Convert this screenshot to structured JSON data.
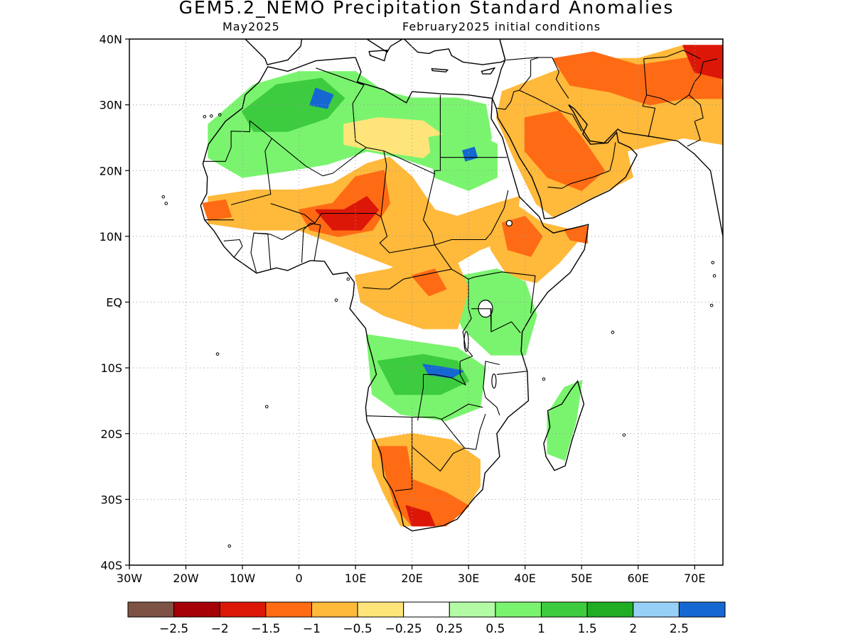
{
  "title": "GEM5.2_NEMO Precipitation Standard Anomalies",
  "valid_month": "May2025",
  "init_conditions": "February2025 initial conditions",
  "map": {
    "lon_range": [
      -30,
      75
    ],
    "lat_range": [
      -40,
      40
    ],
    "grid_lines": "dotted",
    "x_ticks": [
      {
        "lon": -30,
        "label": "30W"
      },
      {
        "lon": -20,
        "label": "20W"
      },
      {
        "lon": -10,
        "label": "10W"
      },
      {
        "lon": 0,
        "label": "0"
      },
      {
        "lon": 10,
        "label": "10E"
      },
      {
        "lon": 20,
        "label": "20E"
      },
      {
        "lon": 30,
        "label": "30E"
      },
      {
        "lon": 40,
        "label": "40E"
      },
      {
        "lon": 50,
        "label": "50E"
      },
      {
        "lon": 60,
        "label": "60E"
      },
      {
        "lon": 70,
        "label": "70E"
      }
    ],
    "y_ticks": [
      {
        "lat": 40,
        "label": "40N"
      },
      {
        "lat": 30,
        "label": "30N"
      },
      {
        "lat": 20,
        "label": "20N"
      },
      {
        "lat": 10,
        "label": "10N"
      },
      {
        "lat": 0,
        "label": "EQ"
      },
      {
        "lat": -10,
        "label": "10S"
      },
      {
        "lat": -20,
        "label": "20S"
      },
      {
        "lat": -30,
        "label": "30S"
      },
      {
        "lat": -40,
        "label": "40S"
      }
    ],
    "anomaly_regions": [
      {
        "name": "north-africa-green",
        "level": 1,
        "color": "#7af46e",
        "pts": [
          [
            -16,
            27
          ],
          [
            -8,
            33
          ],
          [
            0,
            35
          ],
          [
            10,
            35
          ],
          [
            15,
            32
          ],
          [
            20,
            31
          ],
          [
            28,
            31
          ],
          [
            33,
            30
          ],
          [
            34,
            25
          ],
          [
            32,
            20
          ],
          [
            25,
            20
          ],
          [
            18,
            22
          ],
          [
            12,
            23
          ],
          [
            5,
            21
          ],
          [
            -2,
            20
          ],
          [
            -10,
            19
          ],
          [
            -16,
            22
          ]
        ]
      },
      {
        "name": "atlas-medium-green",
        "level": 1.5,
        "color": "#3dcc3f",
        "pts": [
          [
            -10,
            29
          ],
          [
            -4,
            33
          ],
          [
            4,
            34
          ],
          [
            8,
            31
          ],
          [
            5,
            28
          ],
          [
            -2,
            26
          ],
          [
            -8,
            26
          ]
        ]
      },
      {
        "name": "algeria-blue",
        "level": 2.5,
        "color": "#1568d2",
        "pts": [
          [
            3,
            32.5
          ],
          [
            6,
            31.5
          ],
          [
            5,
            29.5
          ],
          [
            2,
            30
          ]
        ]
      },
      {
        "name": "sahara-yellow",
        "level": -0.5,
        "color": "#ffe579",
        "pts": [
          [
            8,
            27
          ],
          [
            14,
            28
          ],
          [
            22,
            27.5
          ],
          [
            26,
            25
          ],
          [
            22,
            22
          ],
          [
            14,
            23
          ],
          [
            8,
            24
          ]
        ]
      },
      {
        "name": "sahel-orange",
        "level": -1,
        "color": "#ffb93b",
        "pts": [
          [
            -16,
            16
          ],
          [
            -8,
            17
          ],
          [
            0,
            17
          ],
          [
            6,
            18
          ],
          [
            12,
            21
          ],
          [
            16,
            22
          ],
          [
            20,
            19
          ],
          [
            24,
            14
          ],
          [
            28,
            13
          ],
          [
            35,
            15
          ],
          [
            39,
            16
          ],
          [
            38,
            10
          ],
          [
            32,
            8
          ],
          [
            26,
            5
          ],
          [
            18,
            5
          ],
          [
            12,
            7
          ],
          [
            6,
            9
          ],
          [
            0,
            11
          ],
          [
            -8,
            11
          ],
          [
            -16,
            12
          ]
        ]
      },
      {
        "name": "niger-chad-red-orange",
        "level": -1.5,
        "color": "#ff6b14",
        "pts": [
          [
            0,
            14
          ],
          [
            6,
            15
          ],
          [
            10,
            19
          ],
          [
            15,
            20
          ],
          [
            16,
            15
          ],
          [
            13,
            11
          ],
          [
            7,
            10
          ],
          [
            2,
            11
          ]
        ]
      },
      {
        "name": "nigeria-dark-red",
        "level": -2,
        "color": "#dc1708",
        "pts": [
          [
            3,
            14
          ],
          [
            8,
            14
          ],
          [
            12,
            16
          ],
          [
            14,
            14
          ],
          [
            11,
            11
          ],
          [
            6,
            11
          ]
        ]
      },
      {
        "name": "senegal-orange",
        "level": -1.5,
        "color": "#ff6b14",
        "pts": [
          [
            -17,
            15
          ],
          [
            -13,
            15.5
          ],
          [
            -12,
            13
          ],
          [
            -16,
            12.5
          ]
        ]
      },
      {
        "name": "sudan-green",
        "level": 1,
        "color": "#7af46e",
        "pts": [
          [
            23,
            25
          ],
          [
            30,
            26
          ],
          [
            35,
            24
          ],
          [
            35,
            19
          ],
          [
            30,
            17
          ],
          [
            24,
            19
          ]
        ]
      },
      {
        "name": "sudan-blue",
        "level": 2.5,
        "color": "#1568d2",
        "pts": [
          [
            29,
            23
          ],
          [
            31,
            23.5
          ],
          [
            31.5,
            22
          ],
          [
            29.5,
            21.5
          ]
        ]
      },
      {
        "name": "ethiopia-orange",
        "level": -1,
        "color": "#ffb93b",
        "pts": [
          [
            33,
            14
          ],
          [
            38,
            15
          ],
          [
            43,
            12
          ],
          [
            48,
            11
          ],
          [
            50,
            10
          ],
          [
            46,
            6
          ],
          [
            42,
            3
          ],
          [
            37,
            4
          ],
          [
            34,
            8
          ]
        ]
      },
      {
        "name": "ethiopia-red-orange",
        "level": -1.5,
        "color": "#ff6b14",
        "pts": [
          [
            36,
            12
          ],
          [
            40,
            13
          ],
          [
            43,
            10
          ],
          [
            41,
            7
          ],
          [
            37,
            8
          ]
        ]
      },
      {
        "name": "somalia-red",
        "level": -1.5,
        "color": "#ff6b14",
        "pts": [
          [
            47,
            11
          ],
          [
            51,
            11.5
          ],
          [
            51,
            9
          ],
          [
            48,
            9.5
          ]
        ]
      },
      {
        "name": "east-africa-green",
        "level": 1,
        "color": "#7af46e",
        "pts": [
          [
            29,
            4
          ],
          [
            35,
            5
          ],
          [
            40,
            3
          ],
          [
            42,
            -2
          ],
          [
            40,
            -8
          ],
          [
            34,
            -8
          ],
          [
            29,
            -4
          ],
          [
            27,
            0
          ]
        ]
      },
      {
        "name": "congo-orange",
        "level": -1,
        "color": "#ffb93b",
        "pts": [
          [
            10,
            4
          ],
          [
            16,
            5
          ],
          [
            22,
            7
          ],
          [
            28,
            6
          ],
          [
            30,
            2
          ],
          [
            28,
            -4
          ],
          [
            22,
            -4
          ],
          [
            15,
            -2
          ],
          [
            11,
            0
          ]
        ]
      },
      {
        "name": "congo-red-orange",
        "level": -1.5,
        "color": "#ff6b14",
        "pts": [
          [
            20,
            4
          ],
          [
            24,
            5
          ],
          [
            26,
            2
          ],
          [
            23,
            1
          ]
        ]
      },
      {
        "name": "southern-congo-green",
        "level": 1,
        "color": "#7af46e",
        "pts": [
          [
            12,
            -5
          ],
          [
            20,
            -6
          ],
          [
            28,
            -7
          ],
          [
            33,
            -10
          ],
          [
            32,
            -16
          ],
          [
            26,
            -18
          ],
          [
            18,
            -17
          ],
          [
            13,
            -14
          ]
        ]
      },
      {
        "name": "zambia-medium-green",
        "level": 1.5,
        "color": "#3dcc3f",
        "pts": [
          [
            14,
            -9
          ],
          [
            22,
            -8
          ],
          [
            28,
            -9
          ],
          [
            30,
            -12
          ],
          [
            25,
            -14
          ],
          [
            17,
            -14
          ]
        ]
      },
      {
        "name": "zambia-blue",
        "level": 2.5,
        "color": "#1568d2",
        "pts": [
          [
            22,
            -9.5
          ],
          [
            26,
            -10
          ],
          [
            29,
            -10.5
          ],
          [
            27,
            -11.5
          ],
          [
            23,
            -11
          ]
        ]
      },
      {
        "name": "southern-africa-orange",
        "level": -1,
        "color": "#ffb93b",
        "pts": [
          [
            13,
            -21
          ],
          [
            20,
            -20
          ],
          [
            27,
            -21
          ],
          [
            32,
            -24
          ],
          [
            32,
            -28
          ],
          [
            29,
            -32
          ],
          [
            23,
            -34
          ],
          [
            18,
            -34
          ],
          [
            15,
            -29
          ],
          [
            13,
            -25
          ]
        ]
      },
      {
        "name": "southern-africa-red-orange",
        "level": -1.5,
        "color": "#ff6b14",
        "pts": [
          [
            14,
            -22
          ],
          [
            19,
            -22
          ],
          [
            20,
            -27
          ],
          [
            26,
            -29
          ],
          [
            30,
            -31
          ],
          [
            26,
            -34
          ],
          [
            20,
            -34
          ],
          [
            17,
            -31
          ]
        ]
      },
      {
        "name": "south-africa-dark-red",
        "level": -2,
        "color": "#dc1708",
        "pts": [
          [
            19,
            -31
          ],
          [
            23,
            -32
          ],
          [
            24,
            -34
          ],
          [
            20,
            -34
          ]
        ]
      },
      {
        "name": "madagascar-green",
        "level": 1,
        "color": "#7af46e",
        "pts": [
          [
            47,
            -13
          ],
          [
            50,
            -12
          ],
          [
            49,
            -18
          ],
          [
            47,
            -24
          ],
          [
            44,
            -23
          ],
          [
            44,
            -17
          ]
        ]
      },
      {
        "name": "arabia-orange",
        "level": -1,
        "color": "#ffb93b",
        "pts": [
          [
            36,
            32
          ],
          [
            45,
            35
          ],
          [
            52,
            37
          ],
          [
            60,
            37
          ],
          [
            68,
            39
          ],
          [
            75,
            39
          ],
          [
            75,
            24
          ],
          [
            68,
            25
          ],
          [
            58,
            23
          ],
          [
            59,
            19
          ],
          [
            52,
            16
          ],
          [
            45,
            13
          ],
          [
            42,
            15
          ],
          [
            38,
            22
          ],
          [
            35,
            28
          ]
        ]
      },
      {
        "name": "arabia-red-orange",
        "level": -1.5,
        "color": "#ff6b14",
        "pts": [
          [
            40,
            28
          ],
          [
            46,
            29
          ],
          [
            50,
            25
          ],
          [
            54,
            20
          ],
          [
            50,
            17
          ],
          [
            44,
            19
          ],
          [
            40,
            23
          ]
        ]
      },
      {
        "name": "iran-red-orange",
        "level": -1.5,
        "color": "#ff6b14",
        "pts": [
          [
            45,
            37
          ],
          [
            52,
            38
          ],
          [
            60,
            36
          ],
          [
            68,
            37
          ],
          [
            74,
            38
          ],
          [
            75,
            31
          ],
          [
            68,
            31
          ],
          [
            62,
            30
          ],
          [
            55,
            32
          ],
          [
            48,
            33
          ]
        ]
      },
      {
        "name": "pakistan-dark-red",
        "level": -2,
        "color": "#dc1708",
        "pts": [
          [
            68,
            39
          ],
          [
            75,
            39
          ],
          [
            75,
            34
          ],
          [
            70,
            35
          ]
        ]
      }
    ]
  },
  "colorbar": {
    "colors": [
      "#7d5345",
      "#a50008",
      "#dc1708",
      "#ff6b14",
      "#ffb93b",
      "#ffe579",
      "#ffffff",
      "#b3fba5",
      "#7af46e",
      "#3dcc3f",
      "#20ad23",
      "#97d0f7",
      "#1568d2"
    ],
    "labels": [
      "−2.5",
      "−2",
      "−1.5",
      "−1",
      "−0.5",
      "−0.25",
      "0.25",
      "0.5",
      "1",
      "1.5",
      "2",
      "2.5"
    ]
  }
}
